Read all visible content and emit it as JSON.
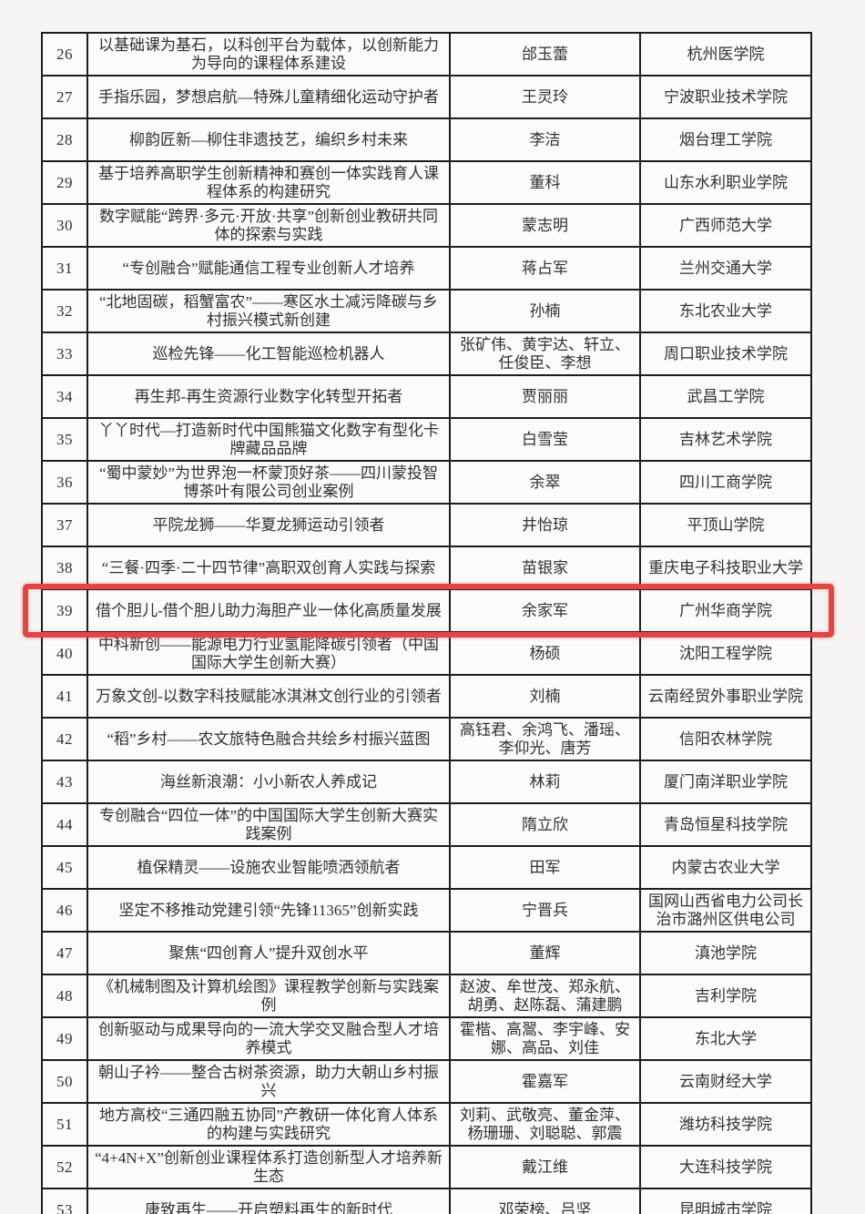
{
  "page": {
    "background_color": "#f6f5f3",
    "border_color": "#1d1d1d",
    "text_color": "#30302f"
  },
  "highlight": {
    "row_no": "39",
    "color": "#df4646"
  },
  "table": {
    "rows": [
      {
        "no": "26",
        "title": "以基础课为基石，以科创平台为载体，以创新能力为导向的课程体系建设",
        "names": "邰玉蕾",
        "institution": "杭州医学院"
      },
      {
        "no": "27",
        "title": "手指乐园，梦想启航—特殊儿童精细化运动守护者",
        "names": "王灵玲",
        "institution": "宁波职业技术学院"
      },
      {
        "no": "28",
        "title": "柳韵匠新—柳住非遗技艺，编织乡村未来",
        "names": "李洁",
        "institution": "烟台理工学院"
      },
      {
        "no": "29",
        "title": "基于培养高职学生创新精神和赛创一体实践育人课程体系的构建研究",
        "names": "董科",
        "institution": "山东水利职业学院"
      },
      {
        "no": "30",
        "title": "数字赋能“跨界·多元·开放·共享”创新创业教研共同体的探索与实践",
        "names": "蒙志明",
        "institution": "广西师范大学"
      },
      {
        "no": "31",
        "title": "“专创融合”赋能通信工程专业创新人才培养",
        "names": "蒋占军",
        "institution": "兰州交通大学"
      },
      {
        "no": "32",
        "title": "“北地固碳，稻蟹富农”——寒区水土减污降碳与乡村振兴模式新创建",
        "names": "孙楠",
        "institution": "东北农业大学"
      },
      {
        "no": "33",
        "title": "巡检先锋——化工智能巡检机器人",
        "names": "张矿伟、黄宇达、轩立、任俊臣、李想",
        "institution": "周口职业技术学院"
      },
      {
        "no": "34",
        "title": "再生邦-再生资源行业数字化转型开拓者",
        "names": "贾丽丽",
        "institution": "武昌工学院"
      },
      {
        "no": "35",
        "title": "丫丫时代—打造新时代中国熊猫文化数字有型化卡牌藏品品牌",
        "names": "白雪莹",
        "institution": "吉林艺术学院"
      },
      {
        "no": "36",
        "title": "“蜀中蒙妙”为世界泡一杯蒙顶好茶——四川蒙投智博茶叶有限公司创业案例",
        "names": "余翠",
        "institution": "四川工商学院"
      },
      {
        "no": "37",
        "title": "平院龙狮——华夏龙狮运动引领者",
        "names": "井怡琼",
        "institution": "平顶山学院"
      },
      {
        "no": "38",
        "title": "“三餐·四季·二十四节律”高职双创育人实践与探索",
        "names": "苗银家",
        "institution": "重庆电子科技职业大学"
      },
      {
        "no": "39",
        "title": "借个胆儿-借个胆儿助力海胆产业一体化高质量发展",
        "names": "余家军",
        "institution": "广州华商学院"
      },
      {
        "no": "40",
        "title": "中科新创——能源电力行业氢能降碳引领者（中国国际大学生创新大赛）",
        "names": "杨硕",
        "institution": "沈阳工程学院"
      },
      {
        "no": "41",
        "title": "万象文创-以数字科技赋能冰淇淋文创行业的引领者",
        "names": "刘楠",
        "institution": "云南经贸外事职业学院"
      },
      {
        "no": "42",
        "title": "“稻”乡村——农文旅特色融合共绘乡村振兴蓝图",
        "names": "高钰君、余鸿飞、潘瑶、李仰光、唐芳",
        "institution": "信阳农林学院"
      },
      {
        "no": "43",
        "title": "海丝新浪潮：小小新农人养成记",
        "names": "林莉",
        "institution": "厦门南洋职业学院"
      },
      {
        "no": "44",
        "title": "专创融合“四位一体”的中国国际大学生创新大赛实践案例",
        "names": "隋立欣",
        "institution": "青岛恒星科技学院"
      },
      {
        "no": "45",
        "title": "植保精灵——设施农业智能喷洒领航者",
        "names": "田军",
        "institution": "内蒙古农业大学"
      },
      {
        "no": "46",
        "title": "坚定不移推动党建引领“先锋11365”创新实践",
        "names": "宁晋兵",
        "institution": "国网山西省电力公司长治市潞州区供电公司"
      },
      {
        "no": "47",
        "title": "聚焦“四创育人”提升双创水平",
        "names": "董辉",
        "institution": "滇池学院"
      },
      {
        "no": "48",
        "title": "《机械制图及计算机绘图》课程教学创新与实践案例",
        "names": "赵波、牟世茂、郑永航、胡勇、赵陈磊、蒲建鹏",
        "institution": "吉利学院"
      },
      {
        "no": "49",
        "title": "创新驱动与成果导向的一流大学交叉融合型人才培养模式",
        "names": "霍楷、高翯、李宇峰、安娜、高品、刘佳",
        "institution": "东北大学"
      },
      {
        "no": "50",
        "title": "朝山子衿——整合古树茶资源，助力大朝山乡村振兴",
        "names": "霍嘉军",
        "institution": "云南财经大学"
      },
      {
        "no": "51",
        "title": "地方高校“三通四融五协同”产教研一体化育人体系的构建与实践研究",
        "names": "刘莉、武敬亮、董金萍、杨珊珊、刘聪聪、郭震",
        "institution": "潍坊科技学院"
      },
      {
        "no": "52",
        "title": "“4+4N+X”创新创业课程体系打造创新型人才培养新生态",
        "names": "戴江维",
        "institution": "大连科技学院"
      },
      {
        "no": "53",
        "title": "康致再生——开启塑料再生的新时代",
        "names": "邓荣榜、吕坚",
        "institution": "昆明城市学院"
      }
    ]
  }
}
